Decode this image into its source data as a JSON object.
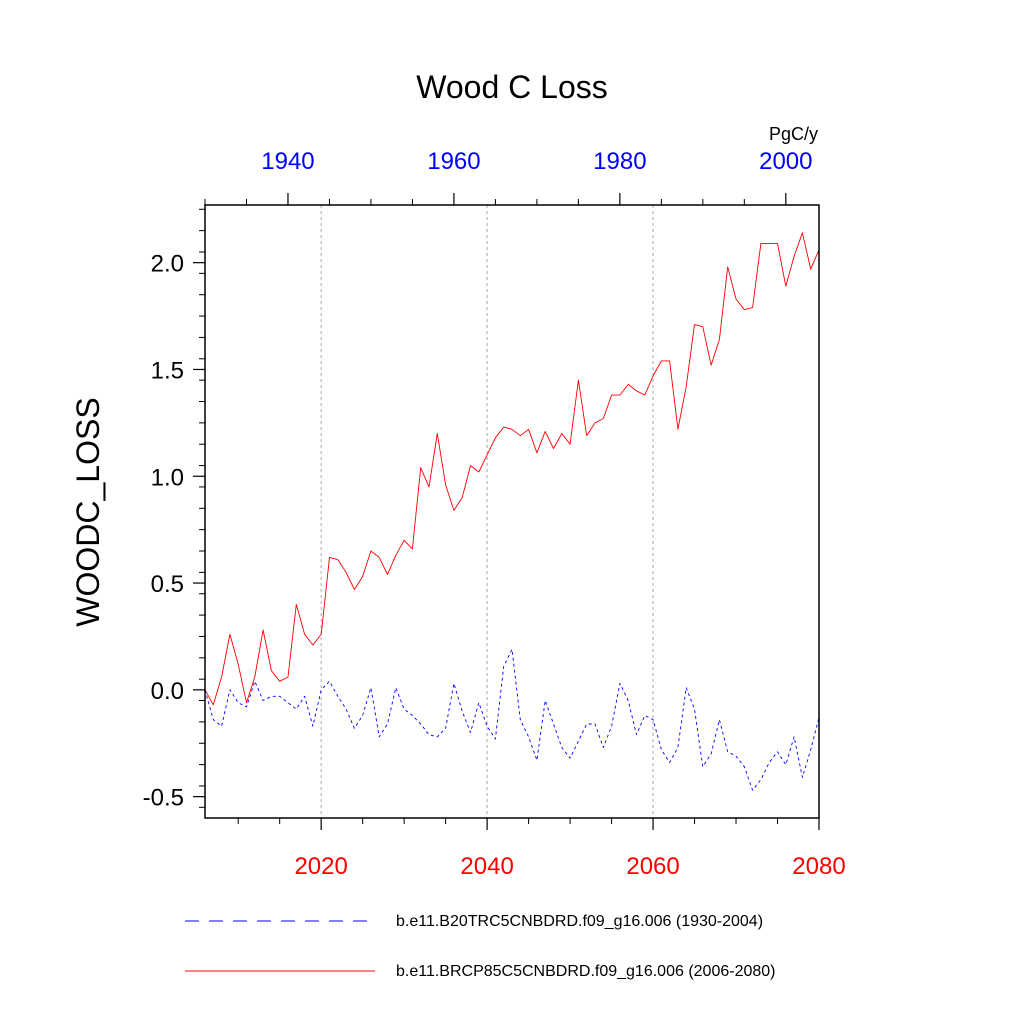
{
  "chart_data": {
    "type": "line",
    "title": "Wood C Loss",
    "units": "PgC/y",
    "ylabel": "WOODC_LOSS",
    "ylim": [
      -0.6,
      2.27
    ],
    "yticks": [
      -0.5,
      0.0,
      0.5,
      1.0,
      1.5,
      2.0
    ],
    "ytick_labels": [
      "-0.5",
      "0.0",
      "0.5",
      "1.0",
      "1.5",
      "2.0"
    ],
    "bottom_axis": {
      "range": [
        2006,
        2080
      ],
      "ticks": [
        2020,
        2040,
        2060,
        2080
      ],
      "labels": [
        "2020",
        "2040",
        "2060",
        "2080"
      ],
      "color": "#ff0000"
    },
    "top_axis": {
      "range": [
        1930,
        2004
      ],
      "ticks": [
        1940,
        1960,
        1980,
        2000
      ],
      "labels": [
        "1940",
        "1960",
        "1980",
        "2000"
      ],
      "color": "#0000ff"
    },
    "vertical_gridlines_at_bottom_x": [
      2020,
      2040,
      2060
    ],
    "series": [
      {
        "name": "b.e11.BRCP85C5CNBDRD.f09_g16.006 (2006-2080)",
        "axis": "bottom",
        "color": "#ff0000",
        "style": "solid",
        "x_start": 2006,
        "values": [
          0.0,
          -0.07,
          0.06,
          0.26,
          0.12,
          -0.06,
          0.06,
          0.28,
          0.09,
          0.04,
          0.06,
          0.4,
          0.26,
          0.21,
          0.26,
          0.62,
          0.61,
          0.55,
          0.47,
          0.53,
          0.65,
          0.62,
          0.54,
          0.63,
          0.7,
          0.66,
          1.04,
          0.95,
          1.2,
          0.96,
          0.84,
          0.9,
          1.05,
          1.02,
          1.1,
          1.18,
          1.23,
          1.22,
          1.19,
          1.22,
          1.11,
          1.21,
          1.13,
          1.2,
          1.15,
          1.45,
          1.19,
          1.25,
          1.27,
          1.38,
          1.38,
          1.43,
          1.4,
          1.38,
          1.47,
          1.54,
          1.54,
          1.22,
          1.42,
          1.71,
          1.7,
          1.52,
          1.64,
          1.98,
          1.83,
          1.78,
          1.79,
          2.09,
          2.09,
          2.09,
          1.89,
          2.03,
          2.14,
          1.97,
          2.06
        ]
      },
      {
        "name": "b.e11.B20TRC5CNBDRD.f09_g16.006 (1930-2004)",
        "axis": "top",
        "color": "#0000ff",
        "style": "dashed",
        "x_start": 1930,
        "values": [
          0.0,
          -0.14,
          -0.17,
          -0.0,
          -0.06,
          -0.08,
          0.04,
          -0.05,
          -0.03,
          -0.03,
          -0.06,
          -0.09,
          -0.03,
          -0.17,
          0.0,
          0.04,
          -0.03,
          -0.09,
          -0.18,
          -0.12,
          0.01,
          -0.22,
          -0.16,
          0.01,
          -0.09,
          -0.12,
          -0.16,
          -0.21,
          -0.22,
          -0.18,
          0.03,
          -0.1,
          -0.2,
          -0.06,
          -0.17,
          -0.23,
          0.11,
          0.19,
          -0.14,
          -0.22,
          -0.33,
          -0.05,
          -0.16,
          -0.27,
          -0.32,
          -0.24,
          -0.16,
          -0.16,
          -0.27,
          -0.17,
          0.03,
          -0.05,
          -0.21,
          -0.12,
          -0.14,
          -0.28,
          -0.34,
          -0.27,
          0.01,
          -0.09,
          -0.36,
          -0.3,
          -0.14,
          -0.29,
          -0.31,
          -0.36,
          -0.47,
          -0.42,
          -0.34,
          -0.29,
          -0.35,
          -0.22,
          -0.41,
          -0.28,
          -0.13
        ]
      }
    ]
  }
}
